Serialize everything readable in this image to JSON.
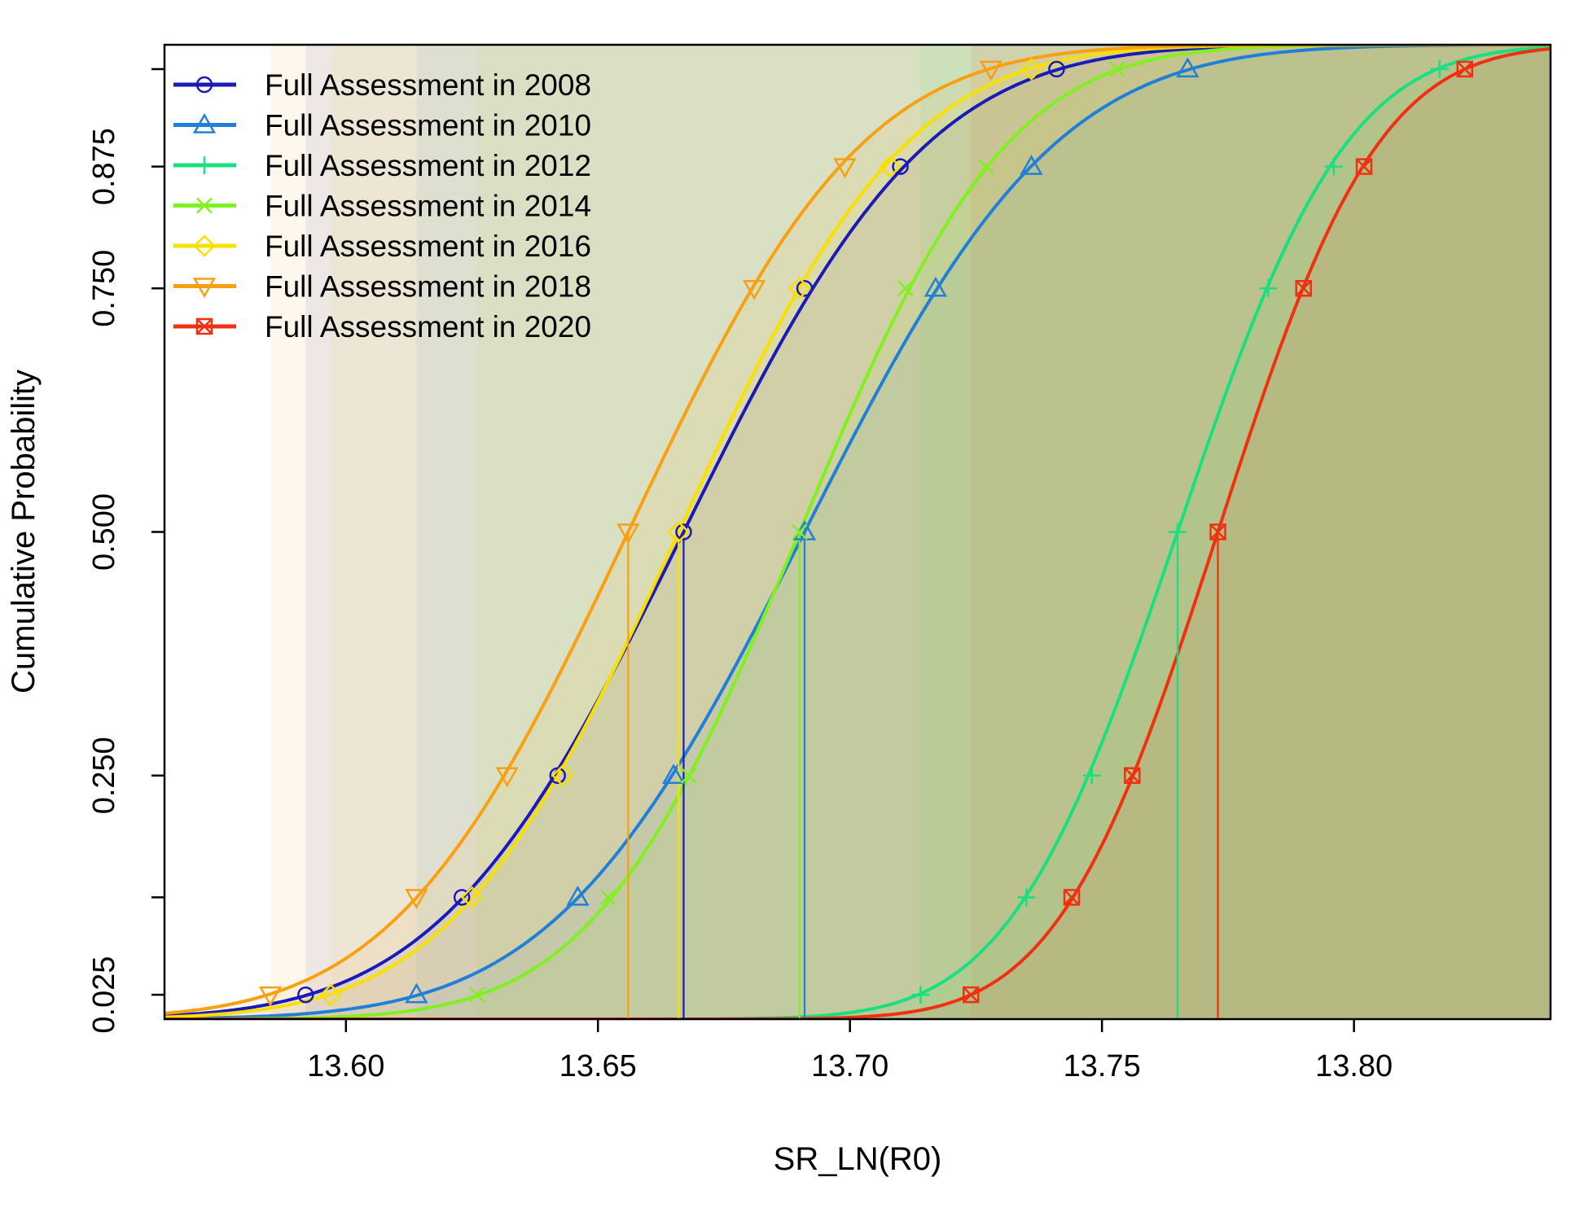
{
  "chart_data": {
    "type": "line",
    "title": "",
    "xlabel": "SR_LN(R0)",
    "ylabel": "Cumulative Probability",
    "xlim": [
      13.564,
      13.839
    ],
    "ylim": [
      0,
      1
    ],
    "x_ticks": [
      13.6,
      13.65,
      13.7,
      13.75,
      13.8
    ],
    "x_tick_labels": [
      "13.60",
      "13.65",
      "13.70",
      "13.75",
      "13.80"
    ],
    "y_ticks": [
      0.025,
      0.25,
      0.5,
      0.75,
      0.875
    ],
    "y_tick_labels": [
      "0.025",
      "0.250",
      "0.500",
      "0.750",
      "0.875"
    ],
    "y_minor_ticks": [
      0.125,
      0.975
    ],
    "probability_levels": [
      0.025,
      0.125,
      0.25,
      0.5,
      0.75,
      0.875,
      0.975
    ],
    "grid": false,
    "legend_position": "top-left",
    "series": [
      {
        "name": "Full Assessment in 2008",
        "color": "#1a1ab8",
        "marker": "circle",
        "quantiles": [
          13.592,
          13.623,
          13.642,
          13.667,
          13.691,
          13.71,
          13.741
        ]
      },
      {
        "name": "Full Assessment in 2010",
        "color": "#2080d8",
        "marker": "triangle-up",
        "quantiles": [
          13.614,
          13.646,
          13.665,
          13.691,
          13.717,
          13.736,
          13.767
        ]
      },
      {
        "name": "Full Assessment in 2012",
        "color": "#18e080",
        "marker": "plus",
        "quantiles": [
          13.714,
          13.735,
          13.748,
          13.765,
          13.783,
          13.796,
          13.817
        ]
      },
      {
        "name": "Full Assessment in 2014",
        "color": "#80f020",
        "marker": "x",
        "quantiles": [
          13.626,
          13.652,
          13.668,
          13.69,
          13.711,
          13.727,
          13.753
        ]
      },
      {
        "name": "Full Assessment in 2016",
        "color": "#f8e000",
        "marker": "diamond",
        "quantiles": [
          13.597,
          13.625,
          13.643,
          13.666,
          13.69,
          13.708,
          13.736
        ]
      },
      {
        "name": "Full Assessment in 2018",
        "color": "#f8a010",
        "marker": "triangle-down",
        "quantiles": [
          13.585,
          13.614,
          13.632,
          13.656,
          13.681,
          13.699,
          13.728
        ]
      },
      {
        "name": "Full Assessment in 2020",
        "color": "#f03010",
        "marker": "square-x",
        "quantiles": [
          13.724,
          13.744,
          13.756,
          13.773,
          13.79,
          13.802,
          13.822
        ]
      }
    ]
  }
}
